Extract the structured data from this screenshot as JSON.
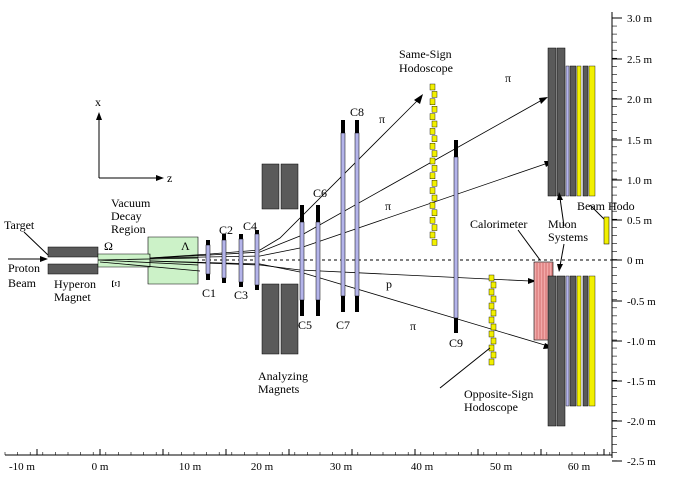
{
  "x_axis": {
    "ticks": [
      "-10 m",
      "0 m",
      "10 m",
      "20 m",
      "30 m",
      "40 m",
      "50 m",
      "60 m"
    ]
  },
  "y_axis": {
    "ticks": [
      "3.0 m",
      "2.5 m",
      "2.0 m",
      "1.5 m",
      "1.0 m",
      "0.5 m",
      "0 m",
      "-0.5 m",
      "-1.0 m",
      "-1.5 m",
      "-2.0 m",
      "-2.5 m"
    ]
  },
  "coord_axes": {
    "x": "x",
    "z": "z"
  },
  "labels": {
    "target": "Target",
    "proton_beam_1": "Proton",
    "proton_beam_2": "Beam",
    "hyperon_magnet_1": "Hyperon",
    "hyperon_magnet_2": "Magnet",
    "omega": "Ω",
    "xi": "Ξ",
    "lambda": "Λ",
    "vacuum_1": "Vacuum",
    "vacuum_2": "Decay",
    "vacuum_3": "Region",
    "c1": "C1",
    "c2": "C2",
    "c3": "C3",
    "c4": "C4",
    "c5": "C5",
    "c6": "C6",
    "c7": "C7",
    "c8": "C8",
    "c9": "C9",
    "analyzing_1": "Analyzing",
    "analyzing_2": "Magnets",
    "same_sign_1": "Same-Sign",
    "same_sign_2": "Hodoscope",
    "calorimeter": "Calorimeter",
    "muon_1": "Muon",
    "muon_2": "Systems",
    "beam_hodo": "Beam Hodo",
    "opposite_sign_1": "Opposite-Sign",
    "opposite_sign_2": "Hodoscope",
    "pi_top": "π",
    "pi_upper": "π",
    "pi_lower": "π",
    "p": "p"
  },
  "colors": {
    "magnet": "#5a5a5a",
    "vacuum": "#ccf2c8",
    "chamber": "#b4b4ea",
    "hodoscope": "#f2f000",
    "calorimeter": "#f2a8a8",
    "black": "#000000"
  }
}
